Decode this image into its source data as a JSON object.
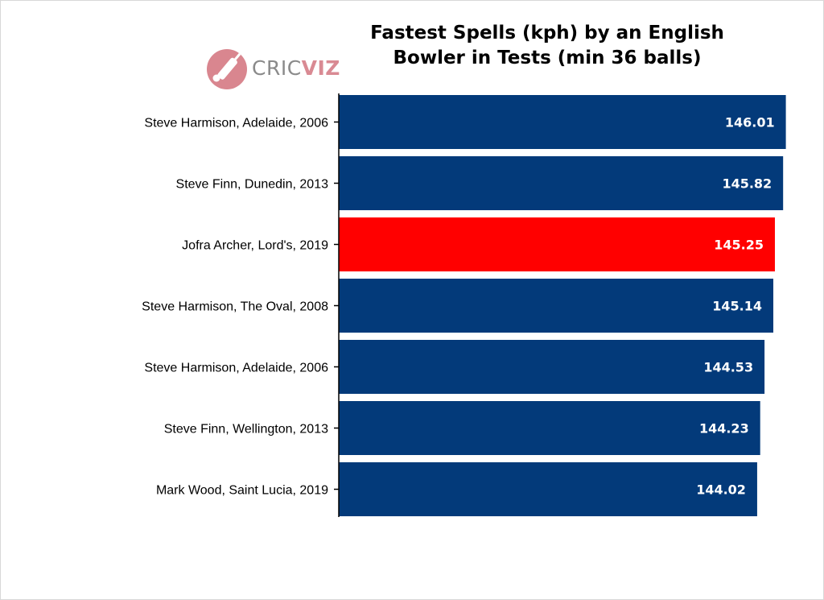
{
  "logo": {
    "text_a": "CRIC",
    "text_b": "VIZ",
    "icon": "cricket-bat-ball-icon"
  },
  "chart_data": {
    "type": "bar",
    "orientation": "horizontal",
    "title": [
      "Fastest Spells (kph) by an English",
      "Bowler in Tests (min 36 balls)"
    ],
    "xlabel": "",
    "ylabel": "",
    "xlim": [
      115,
      146.2
    ],
    "categories": [
      "Steve Harmison, Adelaide, 2006",
      "Steve Finn, Dunedin, 2013",
      "Jofra Archer, Lord's, 2019",
      "Steve Harmison, The Oval, 2008",
      "Steve Harmison, Adelaide, 2006",
      "Steve Finn, Wellington, 2013",
      "Mark Wood, Saint Lucia, 2019"
    ],
    "values": [
      146.01,
      145.82,
      145.25,
      145.14,
      144.53,
      144.23,
      144.02
    ],
    "value_labels": [
      "146.01",
      "145.82",
      "145.25",
      "145.14",
      "144.53",
      "144.23",
      "144.02"
    ],
    "highlight_index": 2,
    "colors": {
      "bar": "#033a7a",
      "highlight": "#ff0000",
      "label": "#ffffff"
    },
    "grid": false,
    "legend": "none"
  }
}
